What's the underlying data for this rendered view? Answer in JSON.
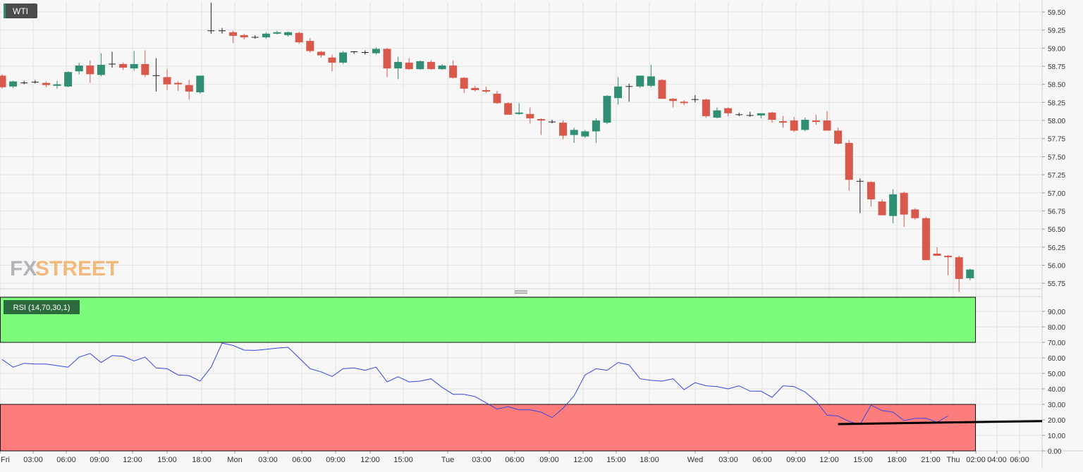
{
  "chart_data": [
    {
      "type": "candlestick",
      "symbol": "WTI",
      "watermark": "FXSTREET",
      "ylim": [
        55.62,
        59.68
      ],
      "y_ticks": [
        "59.50",
        "59.25",
        "59.00",
        "58.75",
        "58.50",
        "58.25",
        "58.00",
        "57.75",
        "57.50",
        "57.25",
        "57.00",
        "56.75",
        "56.50",
        "56.25",
        "56.00",
        "55.75"
      ],
      "x_ticks": [
        "Fri",
        "03:00",
        "06:00",
        "09:00",
        "12:00",
        "15:00",
        "18:00",
        "Mon",
        "03:00",
        "06:00",
        "09:00",
        "12:00",
        "15:00",
        "Tue",
        "03:00",
        "06:00",
        "09:00",
        "12:00",
        "15:00",
        "18:00",
        "Wed",
        "03:00",
        "06:00",
        "09:00",
        "12:00",
        "15:00",
        "18:00",
        "21:00",
        "Thu",
        "02:00",
        "04:00",
        "06:00"
      ],
      "candles": [
        {
          "open": 58.62,
          "high": 58.64,
          "low": 58.44,
          "close": 58.46
        },
        {
          "open": 58.47,
          "high": 58.55,
          "low": 58.45,
          "close": 58.54
        },
        {
          "open": 58.53,
          "high": 58.55,
          "low": 58.5,
          "close": 58.52
        },
        {
          "open": 58.53,
          "high": 58.56,
          "low": 58.51,
          "close": 58.53
        },
        {
          "open": 58.52,
          "high": 58.54,
          "low": 58.46,
          "close": 58.49
        },
        {
          "open": 58.48,
          "high": 58.55,
          "low": 58.44,
          "close": 58.5
        },
        {
          "open": 58.47,
          "high": 58.68,
          "low": 58.46,
          "close": 58.67
        },
        {
          "open": 58.68,
          "high": 58.8,
          "low": 58.64,
          "close": 58.76
        },
        {
          "open": 58.76,
          "high": 58.83,
          "low": 58.52,
          "close": 58.64
        },
        {
          "open": 58.63,
          "high": 58.93,
          "low": 58.61,
          "close": 58.77
        },
        {
          "open": 58.78,
          "high": 58.95,
          "low": 58.73,
          "close": 58.78
        },
        {
          "open": 58.78,
          "high": 58.8,
          "low": 58.7,
          "close": 58.73
        },
        {
          "open": 58.72,
          "high": 58.96,
          "low": 58.69,
          "close": 58.78
        },
        {
          "open": 58.78,
          "high": 58.97,
          "low": 58.6,
          "close": 58.63
        },
        {
          "open": 58.63,
          "high": 58.86,
          "low": 58.4,
          "close": 58.62
        },
        {
          "open": 58.6,
          "high": 58.71,
          "low": 58.42,
          "close": 58.5
        },
        {
          "open": 58.52,
          "high": 58.54,
          "low": 58.41,
          "close": 58.5
        },
        {
          "open": 58.49,
          "high": 58.56,
          "low": 58.29,
          "close": 58.4
        },
        {
          "open": 58.39,
          "high": 58.62,
          "low": 58.37,
          "close": 58.62
        },
        {
          "open": 59.25,
          "high": 59.63,
          "low": 59.2,
          "close": 59.24
        },
        {
          "open": 59.25,
          "high": 59.28,
          "low": 59.2,
          "close": 59.24
        },
        {
          "open": 59.22,
          "high": 59.24,
          "low": 59.07,
          "close": 59.17
        },
        {
          "open": 59.18,
          "high": 59.2,
          "low": 59.12,
          "close": 59.15
        },
        {
          "open": 59.16,
          "high": 59.18,
          "low": 59.13,
          "close": 59.15
        },
        {
          "open": 59.15,
          "high": 59.22,
          "low": 59.13,
          "close": 59.2
        },
        {
          "open": 59.2,
          "high": 59.24,
          "low": 59.19,
          "close": 59.22
        },
        {
          "open": 59.18,
          "high": 59.23,
          "low": 59.16,
          "close": 59.22
        },
        {
          "open": 59.21,
          "high": 59.23,
          "low": 59.06,
          "close": 59.08
        },
        {
          "open": 59.1,
          "high": 59.14,
          "low": 58.94,
          "close": 58.96
        },
        {
          "open": 58.95,
          "high": 58.96,
          "low": 58.87,
          "close": 58.9
        },
        {
          "open": 58.87,
          "high": 58.91,
          "low": 58.68,
          "close": 58.8
        },
        {
          "open": 58.8,
          "high": 58.96,
          "low": 58.78,
          "close": 58.94
        },
        {
          "open": 58.94,
          "high": 58.96,
          "low": 58.92,
          "close": 58.95
        },
        {
          "open": 58.93,
          "high": 58.97,
          "low": 58.91,
          "close": 58.94
        },
        {
          "open": 58.93,
          "high": 59.01,
          "low": 58.91,
          "close": 58.99
        },
        {
          "open": 58.99,
          "high": 59.0,
          "low": 58.6,
          "close": 58.72
        },
        {
          "open": 58.72,
          "high": 58.88,
          "low": 58.57,
          "close": 58.81
        },
        {
          "open": 58.8,
          "high": 58.86,
          "low": 58.7,
          "close": 58.71
        },
        {
          "open": 58.71,
          "high": 58.83,
          "low": 58.7,
          "close": 58.82
        },
        {
          "open": 58.81,
          "high": 58.83,
          "low": 58.7,
          "close": 58.71
        },
        {
          "open": 58.71,
          "high": 58.78,
          "low": 58.7,
          "close": 58.76
        },
        {
          "open": 58.76,
          "high": 58.83,
          "low": 58.58,
          "close": 58.59
        },
        {
          "open": 58.59,
          "high": 58.6,
          "low": 58.38,
          "close": 58.44
        },
        {
          "open": 58.45,
          "high": 58.48,
          "low": 58.4,
          "close": 58.42
        },
        {
          "open": 58.42,
          "high": 58.47,
          "low": 58.38,
          "close": 58.4
        },
        {
          "open": 58.37,
          "high": 58.41,
          "low": 58.23,
          "close": 58.24
        },
        {
          "open": 58.24,
          "high": 58.25,
          "low": 58.08,
          "close": 58.08
        },
        {
          "open": 58.09,
          "high": 58.24,
          "low": 58.08,
          "close": 58.11
        },
        {
          "open": 58.09,
          "high": 58.18,
          "low": 57.96,
          "close": 58.03
        },
        {
          "open": 58.02,
          "high": 58.03,
          "low": 57.8,
          "close": 58.0
        },
        {
          "open": 57.99,
          "high": 58.01,
          "low": 57.96,
          "close": 57.98
        },
        {
          "open": 57.97,
          "high": 58.0,
          "low": 57.74,
          "close": 57.79
        },
        {
          "open": 57.8,
          "high": 57.9,
          "low": 57.69,
          "close": 57.87
        },
        {
          "open": 57.78,
          "high": 57.87,
          "low": 57.76,
          "close": 57.85
        },
        {
          "open": 57.85,
          "high": 58.03,
          "low": 57.69,
          "close": 58.0
        },
        {
          "open": 57.97,
          "high": 58.35,
          "low": 57.95,
          "close": 58.34
        },
        {
          "open": 58.31,
          "high": 58.6,
          "low": 58.22,
          "close": 58.47
        },
        {
          "open": 58.46,
          "high": 58.51,
          "low": 58.26,
          "close": 58.47
        },
        {
          "open": 58.47,
          "high": 58.62,
          "low": 58.45,
          "close": 58.62
        },
        {
          "open": 58.48,
          "high": 58.77,
          "low": 58.46,
          "close": 58.61
        },
        {
          "open": 58.56,
          "high": 58.57,
          "low": 58.31,
          "close": 58.3
        },
        {
          "open": 58.3,
          "high": 58.31,
          "low": 58.18,
          "close": 58.27
        },
        {
          "open": 58.26,
          "high": 58.28,
          "low": 58.21,
          "close": 58.24
        },
        {
          "open": 58.3,
          "high": 58.35,
          "low": 58.25,
          "close": 58.29
        },
        {
          "open": 58.29,
          "high": 58.3,
          "low": 58.04,
          "close": 58.06
        },
        {
          "open": 58.04,
          "high": 58.18,
          "low": 58.03,
          "close": 58.14
        },
        {
          "open": 58.17,
          "high": 58.18,
          "low": 58.06,
          "close": 58.1
        },
        {
          "open": 58.08,
          "high": 58.11,
          "low": 58.06,
          "close": 58.08
        },
        {
          "open": 58.07,
          "high": 58.12,
          "low": 58.05,
          "close": 58.07
        },
        {
          "open": 58.07,
          "high": 58.1,
          "low": 58.03,
          "close": 58.1
        },
        {
          "open": 58.11,
          "high": 58.12,
          "low": 57.97,
          "close": 58.01
        },
        {
          "open": 57.99,
          "high": 58.06,
          "low": 57.9,
          "close": 57.97
        },
        {
          "open": 58.0,
          "high": 58.05,
          "low": 57.84,
          "close": 57.86
        },
        {
          "open": 57.87,
          "high": 58.04,
          "low": 57.85,
          "close": 58.01
        },
        {
          "open": 58.0,
          "high": 58.08,
          "low": 57.94,
          "close": 57.98
        },
        {
          "open": 58.0,
          "high": 58.13,
          "low": 57.9,
          "close": 57.86
        },
        {
          "open": 57.86,
          "high": 57.9,
          "low": 57.67,
          "close": 57.68
        },
        {
          "open": 57.69,
          "high": 57.73,
          "low": 57.03,
          "close": 57.18
        },
        {
          "open": 57.17,
          "high": 57.2,
          "low": 56.72,
          "close": 57.16
        },
        {
          "open": 57.15,
          "high": 57.16,
          "low": 56.81,
          "close": 56.91
        },
        {
          "open": 56.88,
          "high": 56.91,
          "low": 56.7,
          "close": 56.69
        },
        {
          "open": 56.68,
          "high": 57.05,
          "low": 56.58,
          "close": 56.98
        },
        {
          "open": 57.0,
          "high": 57.02,
          "low": 56.53,
          "close": 56.7
        },
        {
          "open": 56.77,
          "high": 56.79,
          "low": 56.63,
          "close": 56.65
        },
        {
          "open": 56.65,
          "high": 56.67,
          "low": 56.07,
          "close": 56.07
        },
        {
          "open": 56.16,
          "high": 56.25,
          "low": 56.14,
          "close": 56.13
        },
        {
          "open": 56.13,
          "high": 56.14,
          "low": 55.86,
          "close": 56.11
        },
        {
          "open": 56.11,
          "high": 56.13,
          "low": 55.63,
          "close": 55.81
        },
        {
          "open": 55.82,
          "high": 55.95,
          "low": 55.79,
          "close": 55.94
        }
      ]
    },
    {
      "type": "line",
      "indicator": "RSI (14,70,30,1)",
      "ylim": [
        0,
        96
      ],
      "y_ticks": [
        "90.00",
        "80.00",
        "70.00",
        "60.00",
        "50.00",
        "40.00",
        "30.00",
        "20.00",
        "10.00",
        "0.00"
      ],
      "zones": [
        {
          "from": 70,
          "to": 100,
          "color": "#7dfb7d"
        },
        {
          "from": 0,
          "to": 30,
          "color": "#fd7d7d"
        }
      ],
      "line_color": "#3347e0",
      "values": [
        59,
        54,
        56.5,
        56,
        56,
        55,
        54,
        60.5,
        62.8,
        57,
        61.5,
        61,
        58,
        60.5,
        53.5,
        53,
        49,
        48.5,
        45,
        54,
        69.5,
        68,
        65,
        64.8,
        65.5,
        66.3,
        66.8,
        60,
        53,
        51,
        48,
        53,
        53.5,
        52,
        54,
        44.5,
        47.8,
        44.5,
        45,
        46.5,
        41,
        36.5,
        36.5,
        35,
        31,
        27,
        28.5,
        26.5,
        26.5,
        25,
        21.5,
        27.5,
        35.5,
        49,
        53,
        52,
        57,
        55.5,
        46.5,
        45.5,
        45,
        46.5,
        39.5,
        44,
        42,
        41.5,
        40,
        42,
        38.5,
        38.5,
        34.5,
        42,
        41.5,
        38,
        32,
        23,
        22.5,
        19,
        17,
        29.5,
        26,
        25,
        19.5,
        21,
        21,
        18.5,
        22.5
      ],
      "trendline": {
        "from": [
          76,
          17.3
        ],
        "to": [
          94,
          19.2
        ],
        "color": "#000000"
      }
    }
  ],
  "colors": {
    "up": "#2f8e73",
    "down": "#d8584b",
    "background": "#f7f7f7",
    "grid": "#e2e2e2",
    "axis_text": "#333333"
  }
}
